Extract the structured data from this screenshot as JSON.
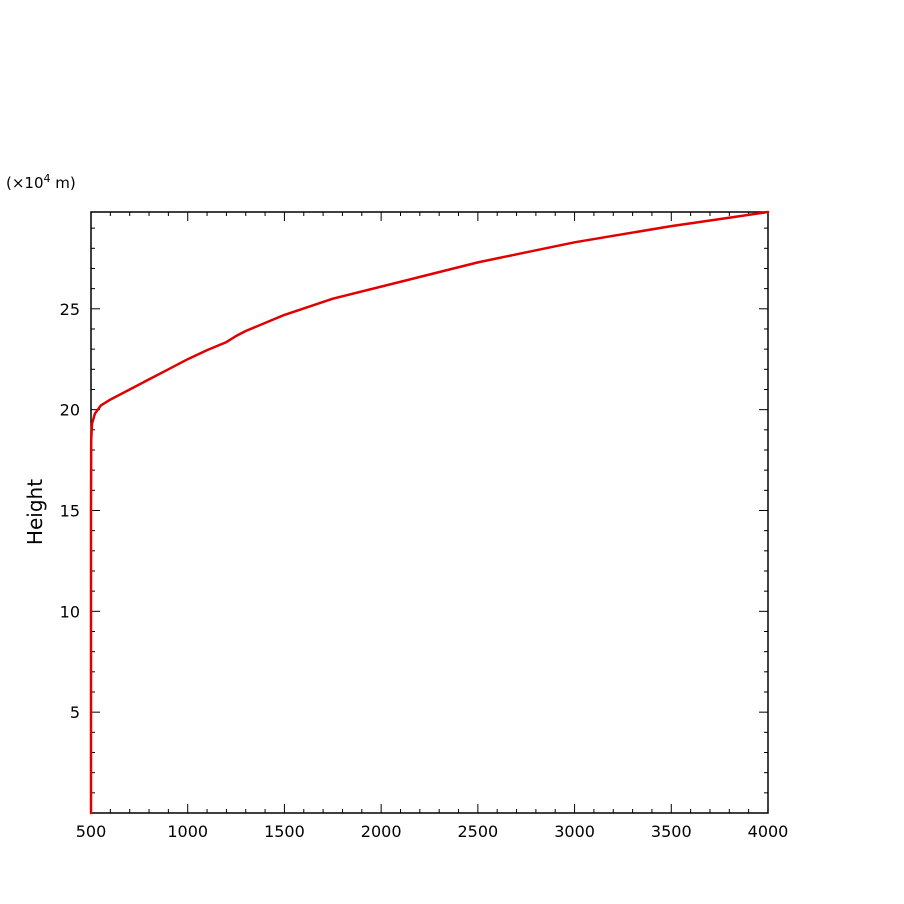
{
  "chart_data": {
    "type": "line",
    "title": "",
    "xlabel": "",
    "ylabel": "Height",
    "y_unit_base": "(×10",
    "y_unit_exp": "4",
    "y_unit_suffix": " m)",
    "xlim": [
      500,
      4000
    ],
    "ylim": [
      0,
      29.8
    ],
    "x_major_ticks": [
      500,
      1000,
      1500,
      2000,
      2500,
      3000,
      3500,
      4000
    ],
    "y_major_ticks": [
      5,
      10,
      15,
      20,
      25
    ],
    "grid": false,
    "series": [
      {
        "color": "#e00000",
        "points": [
          [
            500,
            0
          ],
          [
            500,
            5
          ],
          [
            500,
            10
          ],
          [
            500,
            15
          ],
          [
            501,
            18.5
          ],
          [
            505,
            19.3
          ],
          [
            520,
            19.8
          ],
          [
            550,
            20.2
          ],
          [
            600,
            20.5
          ],
          [
            700,
            21.0
          ],
          [
            800,
            21.5
          ],
          [
            900,
            22.0
          ],
          [
            1000,
            22.5
          ],
          [
            1100,
            22.95
          ],
          [
            1200,
            23.35
          ],
          [
            1250,
            23.65
          ],
          [
            1300,
            23.9
          ],
          [
            1500,
            24.7
          ],
          [
            1750,
            25.5
          ],
          [
            2000,
            26.1
          ],
          [
            2250,
            26.7
          ],
          [
            2500,
            27.3
          ],
          [
            2750,
            27.8
          ],
          [
            3000,
            28.3
          ],
          [
            3250,
            28.7
          ],
          [
            3500,
            29.1
          ],
          [
            3750,
            29.45
          ],
          [
            4000,
            29.8
          ]
        ]
      }
    ]
  }
}
